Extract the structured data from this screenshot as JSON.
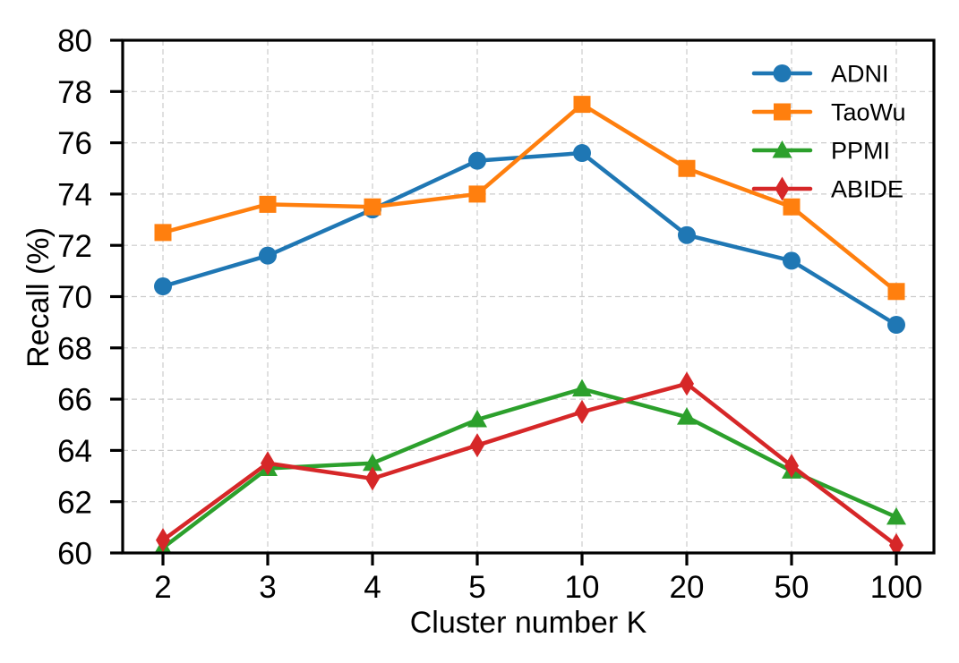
{
  "figure": {
    "background": "#ffffff"
  },
  "chart_data": {
    "type": "line",
    "title": "",
    "xlabel": "Cluster number K",
    "ylabel": "Recall (%)",
    "x_categories": [
      "2",
      "3",
      "4",
      "5",
      "10",
      "20",
      "50",
      "100"
    ],
    "ylim": [
      60,
      80
    ],
    "yticks": [
      60,
      62,
      64,
      66,
      68,
      70,
      72,
      74,
      76,
      78,
      80
    ],
    "grid": {
      "show": true,
      "axis": "both",
      "style": "dashed",
      "color": "#cccccc"
    },
    "axis_color": "#000000",
    "legend": {
      "position": "upper-right",
      "frame": false,
      "entries": [
        "ADNI",
        "TaoWu",
        "PPMI",
        "ABIDE"
      ]
    },
    "series": [
      {
        "name": "ADNI",
        "color": "#1f77b4",
        "marker": "circle",
        "values": [
          70.4,
          71.6,
          73.4,
          75.3,
          75.6,
          72.4,
          71.4,
          68.9
        ]
      },
      {
        "name": "TaoWu",
        "color": "#ff7f0e",
        "marker": "square",
        "values": [
          72.5,
          73.6,
          73.5,
          74.0,
          77.5,
          75.0,
          73.5,
          70.2
        ]
      },
      {
        "name": "PPMI",
        "color": "#2ca02c",
        "marker": "triangle-up",
        "values": [
          60.2,
          63.3,
          63.5,
          65.2,
          66.4,
          65.3,
          63.2,
          61.4
        ]
      },
      {
        "name": "ABIDE",
        "color": "#d62728",
        "marker": "thin-diamond",
        "values": [
          60.5,
          63.5,
          62.9,
          64.2,
          65.5,
          66.6,
          63.4,
          60.3
        ]
      }
    ]
  }
}
